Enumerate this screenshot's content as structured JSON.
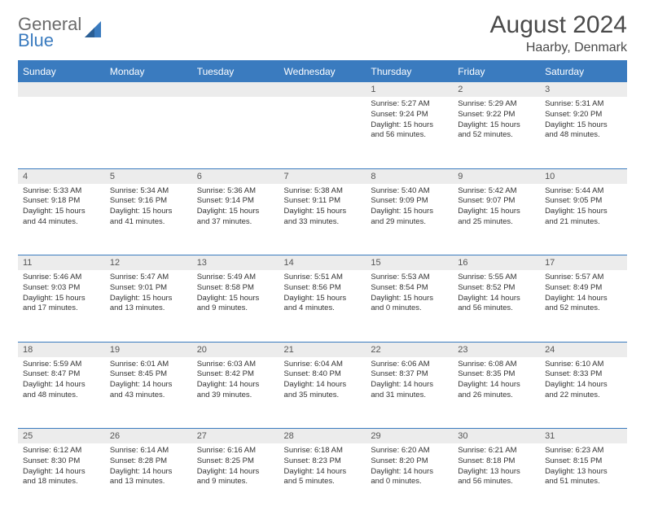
{
  "logo": {
    "word1": "General",
    "word2": "Blue"
  },
  "header": {
    "title": "August 2024",
    "location": "Haarby, Denmark"
  },
  "colors": {
    "accent": "#3a7bbf",
    "header_bg": "#3a7bbf",
    "daynum_bg": "#ececec",
    "text": "#333333",
    "logo_gray": "#6b6b6b"
  },
  "dayNames": [
    "Sunday",
    "Monday",
    "Tuesday",
    "Wednesday",
    "Thursday",
    "Friday",
    "Saturday"
  ],
  "weeks": [
    [
      null,
      null,
      null,
      null,
      {
        "n": "1",
        "sunrise": "5:27 AM",
        "sunset": "9:24 PM",
        "daylight": "15 hours and 56 minutes."
      },
      {
        "n": "2",
        "sunrise": "5:29 AM",
        "sunset": "9:22 PM",
        "daylight": "15 hours and 52 minutes."
      },
      {
        "n": "3",
        "sunrise": "5:31 AM",
        "sunset": "9:20 PM",
        "daylight": "15 hours and 48 minutes."
      }
    ],
    [
      {
        "n": "4",
        "sunrise": "5:33 AM",
        "sunset": "9:18 PM",
        "daylight": "15 hours and 44 minutes."
      },
      {
        "n": "5",
        "sunrise": "5:34 AM",
        "sunset": "9:16 PM",
        "daylight": "15 hours and 41 minutes."
      },
      {
        "n": "6",
        "sunrise": "5:36 AM",
        "sunset": "9:14 PM",
        "daylight": "15 hours and 37 minutes."
      },
      {
        "n": "7",
        "sunrise": "5:38 AM",
        "sunset": "9:11 PM",
        "daylight": "15 hours and 33 minutes."
      },
      {
        "n": "8",
        "sunrise": "5:40 AM",
        "sunset": "9:09 PM",
        "daylight": "15 hours and 29 minutes."
      },
      {
        "n": "9",
        "sunrise": "5:42 AM",
        "sunset": "9:07 PM",
        "daylight": "15 hours and 25 minutes."
      },
      {
        "n": "10",
        "sunrise": "5:44 AM",
        "sunset": "9:05 PM",
        "daylight": "15 hours and 21 minutes."
      }
    ],
    [
      {
        "n": "11",
        "sunrise": "5:46 AM",
        "sunset": "9:03 PM",
        "daylight": "15 hours and 17 minutes."
      },
      {
        "n": "12",
        "sunrise": "5:47 AM",
        "sunset": "9:01 PM",
        "daylight": "15 hours and 13 minutes."
      },
      {
        "n": "13",
        "sunrise": "5:49 AM",
        "sunset": "8:58 PM",
        "daylight": "15 hours and 9 minutes."
      },
      {
        "n": "14",
        "sunrise": "5:51 AM",
        "sunset": "8:56 PM",
        "daylight": "15 hours and 4 minutes."
      },
      {
        "n": "15",
        "sunrise": "5:53 AM",
        "sunset": "8:54 PM",
        "daylight": "15 hours and 0 minutes."
      },
      {
        "n": "16",
        "sunrise": "5:55 AM",
        "sunset": "8:52 PM",
        "daylight": "14 hours and 56 minutes."
      },
      {
        "n": "17",
        "sunrise": "5:57 AM",
        "sunset": "8:49 PM",
        "daylight": "14 hours and 52 minutes."
      }
    ],
    [
      {
        "n": "18",
        "sunrise": "5:59 AM",
        "sunset": "8:47 PM",
        "daylight": "14 hours and 48 minutes."
      },
      {
        "n": "19",
        "sunrise": "6:01 AM",
        "sunset": "8:45 PM",
        "daylight": "14 hours and 43 minutes."
      },
      {
        "n": "20",
        "sunrise": "6:03 AM",
        "sunset": "8:42 PM",
        "daylight": "14 hours and 39 minutes."
      },
      {
        "n": "21",
        "sunrise": "6:04 AM",
        "sunset": "8:40 PM",
        "daylight": "14 hours and 35 minutes."
      },
      {
        "n": "22",
        "sunrise": "6:06 AM",
        "sunset": "8:37 PM",
        "daylight": "14 hours and 31 minutes."
      },
      {
        "n": "23",
        "sunrise": "6:08 AM",
        "sunset": "8:35 PM",
        "daylight": "14 hours and 26 minutes."
      },
      {
        "n": "24",
        "sunrise": "6:10 AM",
        "sunset": "8:33 PM",
        "daylight": "14 hours and 22 minutes."
      }
    ],
    [
      {
        "n": "25",
        "sunrise": "6:12 AM",
        "sunset": "8:30 PM",
        "daylight": "14 hours and 18 minutes."
      },
      {
        "n": "26",
        "sunrise": "6:14 AM",
        "sunset": "8:28 PM",
        "daylight": "14 hours and 13 minutes."
      },
      {
        "n": "27",
        "sunrise": "6:16 AM",
        "sunset": "8:25 PM",
        "daylight": "14 hours and 9 minutes."
      },
      {
        "n": "28",
        "sunrise": "6:18 AM",
        "sunset": "8:23 PM",
        "daylight": "14 hours and 5 minutes."
      },
      {
        "n": "29",
        "sunrise": "6:20 AM",
        "sunset": "8:20 PM",
        "daylight": "14 hours and 0 minutes."
      },
      {
        "n": "30",
        "sunrise": "6:21 AM",
        "sunset": "8:18 PM",
        "daylight": "13 hours and 56 minutes."
      },
      {
        "n": "31",
        "sunrise": "6:23 AM",
        "sunset": "8:15 PM",
        "daylight": "13 hours and 51 minutes."
      }
    ]
  ],
  "labels": {
    "sunrise": "Sunrise:",
    "sunset": "Sunset:",
    "daylight": "Daylight:"
  }
}
